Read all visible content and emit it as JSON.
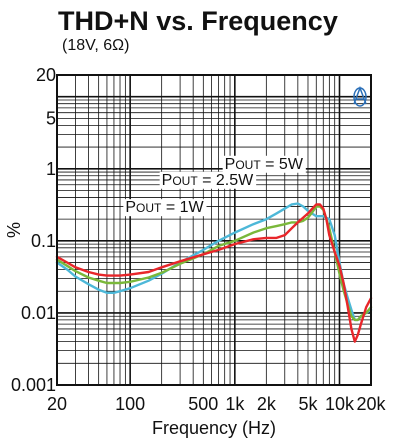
{
  "chart_data": {
    "type": "line",
    "title": "THD+N vs. Frequency",
    "subtitle": "(18V, 6Ω)",
    "xlabel": "Frequency (Hz)",
    "ylabel": "%",
    "x_scale": "log",
    "y_scale": "log",
    "xlim": [
      20,
      20000
    ],
    "ylim": [
      0.001,
      20
    ],
    "grid": true,
    "x_ticks": [
      {
        "value": 20,
        "label": "20"
      },
      {
        "value": 100,
        "label": "100"
      },
      {
        "value": 500,
        "label": "500"
      },
      {
        "value": 1000,
        "label": "1k"
      },
      {
        "value": 2000,
        "label": "2k"
      },
      {
        "value": 5000,
        "label": "5k"
      },
      {
        "value": 10000,
        "label": "10k"
      },
      {
        "value": 20000,
        "label": "20k"
      }
    ],
    "y_ticks": [
      {
        "value": 20,
        "label": "20"
      },
      {
        "value": 5,
        "label": "5"
      },
      {
        "value": 1,
        "label": "1"
      },
      {
        "value": 0.1,
        "label": "0.1"
      },
      {
        "value": 0.01,
        "label": "0.01"
      },
      {
        "value": 0.001,
        "label": "0.001"
      }
    ],
    "annotations": [
      {
        "pre": "P",
        "sub": "OUT",
        "post": " = 5W",
        "x": 800,
        "y": 1.0
      },
      {
        "pre": "P",
        "sub": "OUT",
        "post": " = 2.5W",
        "x": 200,
        "y": 0.6
      },
      {
        "pre": "P",
        "sub": "OUT",
        "post": " = 1W",
        "x": 90,
        "y": 0.25
      }
    ],
    "series": [
      {
        "color": "#4db8d8",
        "x": [
          20,
          25,
          30,
          40,
          50,
          60,
          70,
          80,
          100,
          150,
          200,
          300,
          500,
          700,
          1000,
          1500,
          2000,
          2500,
          3000,
          3500,
          4000,
          4500,
          5000,
          6000,
          7000,
          8000,
          9000,
          10000,
          11000,
          12000,
          13000,
          14000,
          15000,
          16000,
          18000,
          20000
        ],
        "y": [
          0.05,
          0.04,
          0.032,
          0.025,
          0.021,
          0.019,
          0.019,
          0.02,
          0.022,
          0.028,
          0.035,
          0.05,
          0.075,
          0.1,
          0.13,
          0.17,
          0.2,
          0.24,
          0.28,
          0.32,
          0.33,
          0.3,
          0.26,
          0.22,
          0.22,
          0.2,
          0.12,
          0.05,
          0.025,
          0.016,
          0.011,
          0.008,
          0.008,
          0.009,
          0.01,
          0.011
        ]
      },
      {
        "color": "#7ab83a",
        "x": [
          20,
          25,
          30,
          40,
          50,
          60,
          70,
          80,
          100,
          150,
          200,
          300,
          500,
          700,
          1000,
          1500,
          2000,
          2500,
          3000,
          3500,
          4000,
          4500,
          5000,
          5500,
          6000,
          6500,
          7000,
          8000,
          9000,
          10000,
          11000,
          12000,
          13000,
          14000,
          15000,
          16000,
          18000,
          20000
        ],
        "y": [
          0.055,
          0.045,
          0.038,
          0.031,
          0.028,
          0.026,
          0.026,
          0.026,
          0.027,
          0.031,
          0.036,
          0.048,
          0.065,
          0.085,
          0.1,
          0.13,
          0.15,
          0.16,
          0.17,
          0.18,
          0.18,
          0.19,
          0.21,
          0.25,
          0.3,
          0.3,
          0.27,
          0.15,
          0.07,
          0.035,
          0.02,
          0.013,
          0.009,
          0.008,
          0.008,
          0.009,
          0.01,
          0.012
        ]
      },
      {
        "color": "#e8262a",
        "x": [
          20,
          25,
          30,
          40,
          50,
          60,
          70,
          80,
          100,
          150,
          200,
          300,
          500,
          700,
          1000,
          1500,
          2000,
          2500,
          3000,
          3500,
          4000,
          4500,
          5000,
          5500,
          6000,
          6500,
          7000,
          7500,
          8000,
          9000,
          10000,
          11000,
          12000,
          13000,
          14000,
          15000,
          16000,
          18000,
          20000
        ],
        "y": [
          0.06,
          0.05,
          0.043,
          0.037,
          0.034,
          0.033,
          0.033,
          0.033,
          0.034,
          0.037,
          0.043,
          0.052,
          0.065,
          0.075,
          0.09,
          0.105,
          0.11,
          0.11,
          0.12,
          0.15,
          0.18,
          0.21,
          0.24,
          0.28,
          0.32,
          0.32,
          0.28,
          0.2,
          0.12,
          0.07,
          0.045,
          0.025,
          0.012,
          0.006,
          0.004,
          0.005,
          0.007,
          0.012,
          0.016
        ]
      }
    ]
  }
}
